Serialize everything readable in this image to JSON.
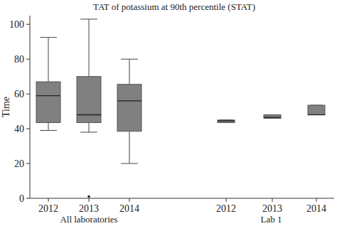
{
  "chart_data": {
    "type": "box",
    "title": "TAT of potassium at 90th percentile (STAT)",
    "y_label": "Time",
    "ylim": [
      0,
      105
    ],
    "yticks": [
      0,
      20,
      40,
      60,
      80,
      100
    ],
    "grid": false,
    "series": [
      {
        "name": "All laboratories",
        "color": "#808080",
        "categories": [
          "2012",
          "2013",
          "2014"
        ],
        "boxes": [
          {
            "min": 39,
            "q1": 43.5,
            "median": 59,
            "q3": 67,
            "max": 92.5,
            "outliers": []
          },
          {
            "min": 38,
            "q1": 43.5,
            "median": 48,
            "q3": 70,
            "max": 103,
            "outliers": [
              1
            ]
          },
          {
            "min": 20,
            "q1": 38.5,
            "median": 56,
            "q3": 65.5,
            "max": 80,
            "outliers": []
          }
        ]
      },
      {
        "name": "Lab 1",
        "color": "#808080",
        "categories": [
          "2012",
          "2013",
          "2014"
        ],
        "boxes": [
          {
            "min": 43.5,
            "q1": 43.5,
            "median": 44.5,
            "q3": 45,
            "max": 45,
            "outliers": []
          },
          {
            "min": 46,
            "q1": 46,
            "median": 46.5,
            "q3": 48,
            "max": 48,
            "outliers": []
          },
          {
            "min": 48,
            "q1": 48,
            "median": 48,
            "q3": 53.5,
            "max": 53.5,
            "outliers": []
          }
        ]
      }
    ]
  }
}
